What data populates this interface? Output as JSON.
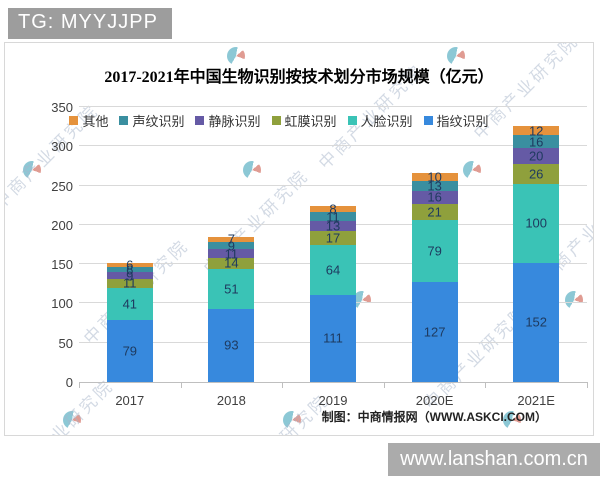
{
  "badge": {
    "text": "TG: MYYJJPP"
  },
  "chart": {
    "footer": "制图：中商情报网（WWW.ASKCI.COM）",
    "watermark_text": "中商产业研究院"
  },
  "chart_data": {
    "type": "bar",
    "stacked": true,
    "title": "2017-2021年中国生物识别按技术划分市场规模（亿元）",
    "categories": [
      "2017",
      "2018",
      "2019",
      "2020E",
      "2021E"
    ],
    "series": [
      {
        "name": "指纹识别",
        "color": "#3789dd",
        "values": [
          79,
          93,
          111,
          127,
          152
        ]
      },
      {
        "name": "人脸识别",
        "color": "#3ac3b6",
        "values": [
          41,
          51,
          64,
          79,
          100
        ]
      },
      {
        "name": "虹膜识别",
        "color": "#8fa03c",
        "values": [
          11,
          14,
          17,
          21,
          26
        ]
      },
      {
        "name": "静脉识别",
        "color": "#655aa5",
        "values": [
          9,
          11,
          13,
          16,
          20
        ]
      },
      {
        "name": "声纹识别",
        "color": "#3a8fa0",
        "values": [
          6,
          9,
          11,
          13,
          16
        ]
      },
      {
        "name": "其他",
        "color": "#e5923c",
        "values": [
          6,
          7,
          8,
          10,
          12
        ]
      }
    ],
    "totals": [
      152,
      185,
      224,
      266,
      326
    ],
    "ylim": [
      0,
      350
    ],
    "yticks": [
      0,
      50,
      100,
      150,
      200,
      250,
      300,
      350
    ],
    "legend_position": "top",
    "grid": true
  },
  "bottom_bar": {
    "text": "www.lanshan.com.cn"
  }
}
